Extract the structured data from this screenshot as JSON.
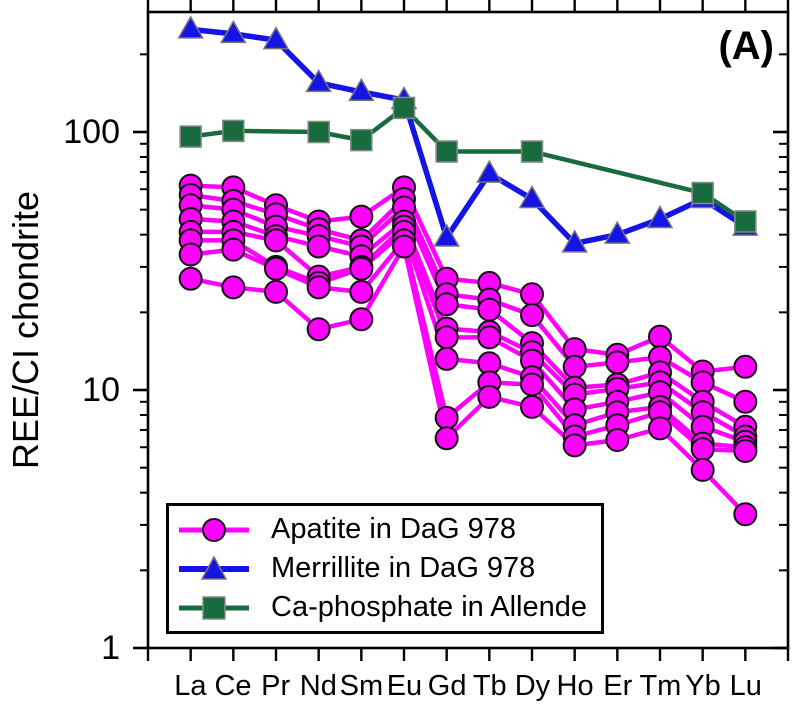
{
  "chart_data": {
    "type": "line",
    "title": "",
    "xlabel": "",
    "ylabel": "REE/CI chondrite",
    "annotation": "(A)",
    "categories": [
      "La",
      "Ce",
      "Pr",
      "Nd",
      "Sm",
      "Eu",
      "Gd",
      "Tb",
      "Dy",
      "Ho",
      "Er",
      "Tm",
      "Yb",
      "Lu"
    ],
    "yaxis": {
      "scale": "log",
      "ylim": [
        1,
        292
      ],
      "major_ticks": [
        1,
        10,
        100
      ],
      "tick_labels": [
        "100",
        "10",
        "1"
      ],
      "grid": false
    },
    "legend_position": "bottom-left",
    "series": [
      {
        "name": "Apatite in DaG 978",
        "color": "#FF00FF",
        "marker": "circle",
        "lines": [
          [
            62,
            61,
            52,
            45,
            47,
            61,
            27,
            26,
            23.5,
            14.4,
            13.7,
            16.1,
            11.8,
            12.3
          ],
          [
            57,
            54,
            48,
            42,
            38,
            55,
            23.5,
            22.4,
            19.5,
            12.3,
            12.8,
            13.4,
            10.7,
            9.0
          ],
          [
            52,
            50,
            43,
            39.5,
            36,
            51,
            21.5,
            20.5,
            15.2,
            10.2,
            10.5,
            11.7,
            9.0,
            7.2
          ],
          [
            46,
            45,
            39.5,
            36,
            33,
            45,
            17.3,
            16.8,
            14.0,
            9.6,
            10.1,
            10.7,
            8.2,
            6.6
          ],
          [
            41,
            41,
            38,
            27.5,
            30,
            43,
            16.0,
            16.0,
            13.0,
            8.4,
            9.0,
            9.8,
            7.2,
            6.3
          ],
          [
            38,
            38,
            30,
            26,
            29.5,
            41,
            13.2,
            12.7,
            11.2,
            7.3,
            8.2,
            8.6,
            6.2,
            6.0
          ],
          [
            33.5,
            35,
            29.5,
            25,
            24,
            38,
            7.8,
            10.7,
            10.5,
            6.6,
            7.3,
            8.2,
            5.9,
            5.8
          ],
          [
            27,
            25,
            24,
            17.2,
            18.8,
            36,
            6.5,
            9.4,
            8.6,
            6.1,
            6.4,
            7.1,
            4.9,
            3.3
          ]
        ]
      },
      {
        "name": "Merrillite in DaG 978",
        "color": "#1414E6",
        "marker": "triangle",
        "lines": [
          [
            250,
            240,
            227,
            155,
            143,
            133,
            39,
            69,
            55,
            37,
            40,
            46,
            55,
            43
          ]
        ]
      },
      {
        "name": "Ca-phosphate in Allende",
        "color": "#186B3C",
        "marker": "square",
        "lines": [
          [
            96,
            101,
            null,
            100,
            93,
            124,
            84,
            null,
            84,
            null,
            null,
            null,
            58,
            45
          ]
        ]
      }
    ]
  },
  "legend": {
    "items": [
      {
        "label": "Apatite in DaG 978",
        "color": "#FF00FF",
        "marker": "circle"
      },
      {
        "label": "Merrillite in DaG 978",
        "color": "#1414E6",
        "marker": "triangle"
      },
      {
        "label": "Ca-phosphate in Allende",
        "color": "#186B3C",
        "marker": "square"
      }
    ]
  }
}
